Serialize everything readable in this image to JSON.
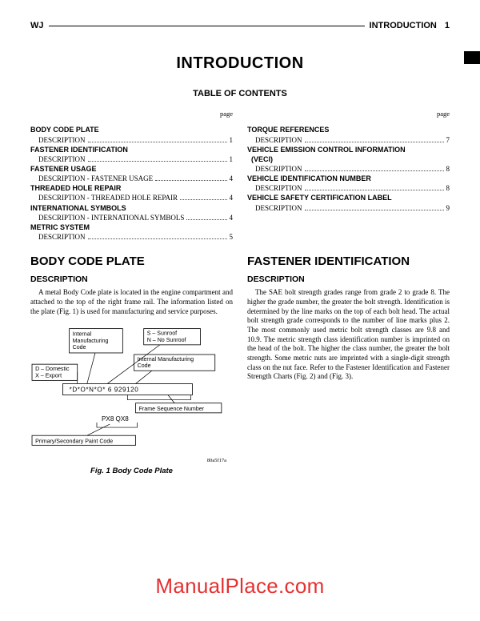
{
  "header": {
    "left": "WJ",
    "right_section": "INTRODUCTION",
    "right_page": "1"
  },
  "titles": {
    "main": "INTRODUCTION",
    "toc": "TABLE OF CONTENTS",
    "page_label": "page"
  },
  "toc": {
    "left": [
      {
        "type": "h",
        "text": "BODY CODE PLATE"
      },
      {
        "type": "row",
        "label": "DESCRIPTION",
        "page": "1"
      },
      {
        "type": "h",
        "text": "FASTENER IDENTIFICATION"
      },
      {
        "type": "row",
        "label": "DESCRIPTION",
        "page": "1"
      },
      {
        "type": "h",
        "text": "FASTENER USAGE"
      },
      {
        "type": "row",
        "label": "DESCRIPTION - FASTENER USAGE",
        "page": "4"
      },
      {
        "type": "h",
        "text": "THREADED HOLE REPAIR"
      },
      {
        "type": "row",
        "label": "DESCRIPTION - THREADED HOLE REPAIR",
        "page": "4"
      },
      {
        "type": "h",
        "text": "INTERNATIONAL SYMBOLS"
      },
      {
        "type": "row",
        "label": "DESCRIPTION - INTERNATIONAL SYMBOLS",
        "page": "4"
      },
      {
        "type": "h",
        "text": "METRIC SYSTEM"
      },
      {
        "type": "row",
        "label": "DESCRIPTION",
        "page": "5"
      }
    ],
    "right": [
      {
        "type": "h",
        "text": "TORQUE REFERENCES"
      },
      {
        "type": "row",
        "label": "DESCRIPTION",
        "page": "7"
      },
      {
        "type": "h",
        "text": "VEHICLE EMISSION CONTROL INFORMATION"
      },
      {
        "type": "h",
        "text": "  (VECI)"
      },
      {
        "type": "row",
        "label": "DESCRIPTION",
        "page": "8"
      },
      {
        "type": "h",
        "text": "VEHICLE IDENTIFICATION NUMBER"
      },
      {
        "type": "row",
        "label": "DESCRIPTION",
        "page": "8"
      },
      {
        "type": "h",
        "text": "VEHICLE SAFETY CERTIFICATION LABEL"
      },
      {
        "type": "row",
        "label": "DESCRIPTION",
        "page": "9"
      }
    ]
  },
  "sections": {
    "body_code": {
      "title": "BODY CODE PLATE",
      "sub": "DESCRIPTION",
      "para": "A metal Body Code plate is located in the engine compartment and attached to the top of the right frame rail. The information listed on the plate (Fig. 1) is used for manufacturing and service purposes."
    },
    "fastener_id": {
      "title": "FASTENER IDENTIFICATION",
      "sub": "DESCRIPTION",
      "para": "The SAE bolt strength grades range from grade 2 to grade 8. The higher the grade number, the greater the bolt strength. Identification is determined by the line marks on the top of each bolt head. The actual bolt strength grade corresponds to the number of line marks plus 2. The most commonly used metric bolt strength classes are 9.8 and 10.9. The metric strength class identification number is imprinted on the head of the bolt. The higher the class number, the greater the bolt strength. Some metric nuts are imprinted with a single-digit strength class on the nut face. Refer to the Fastener Identification and Fastener Strength Charts (Fig. 2) and (Fig. 3)."
    }
  },
  "figure": {
    "caption": "Fig. 1 Body Code Plate",
    "code": "80a5f17a",
    "labels": {
      "internal_mfg": "Internal\nManufacturing\nCode",
      "sunroof": "S – Sunroof\nN – No Sunroof",
      "domestic": "D – Domestic\nX – Export",
      "internal_mfg2": "Internal Manufacturing\nCode",
      "plate_text": "*D*O*N*O*   6 929120",
      "frame_seq": "Frame Sequence Number",
      "px8": "PX8   QX8",
      "paint": "Primary/Secondary Paint Code"
    }
  },
  "watermark": "ManualPlace.com"
}
